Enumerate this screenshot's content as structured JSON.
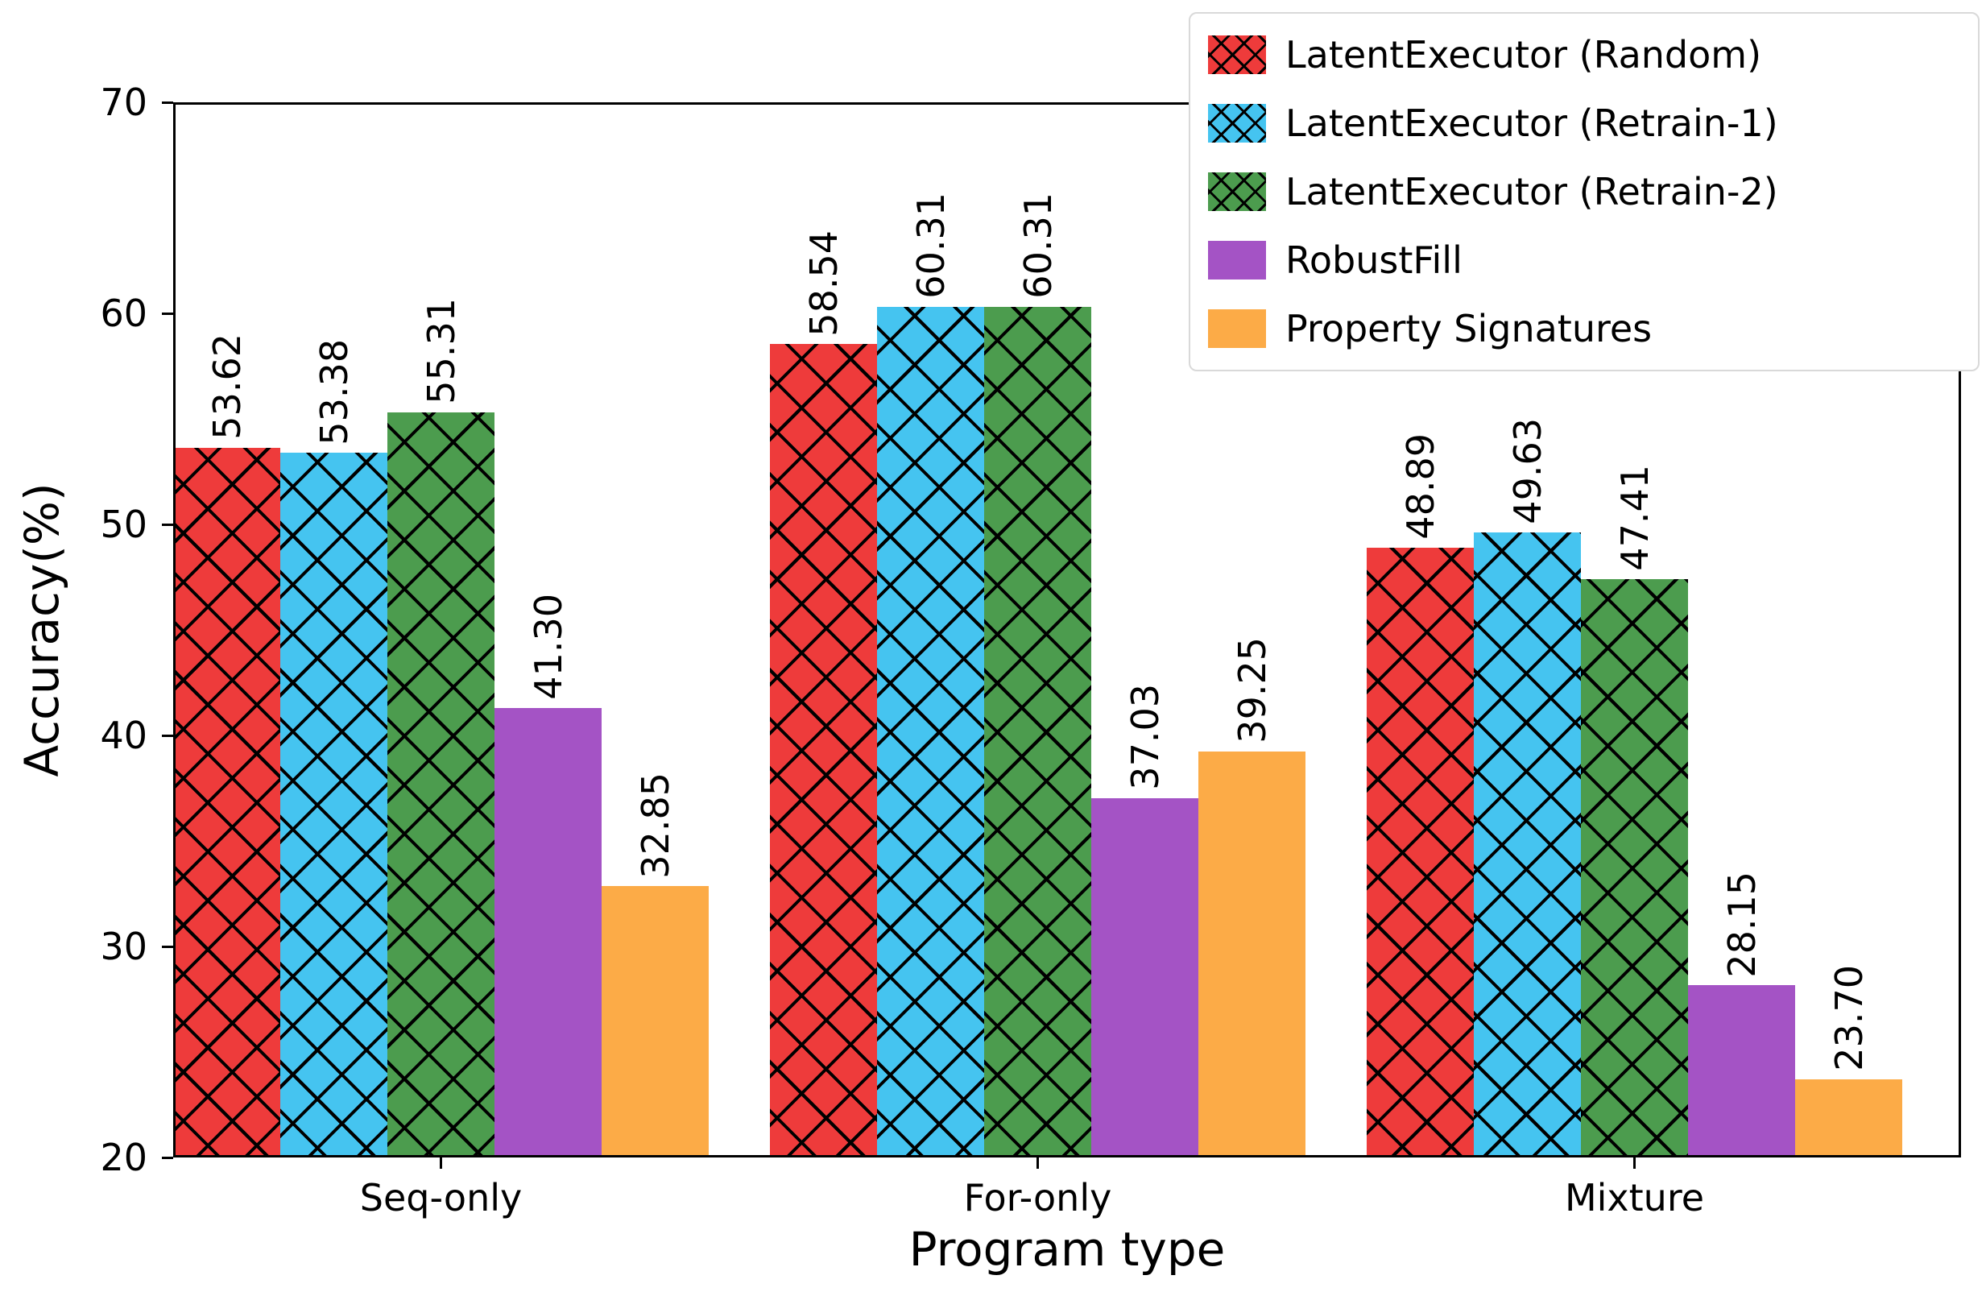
{
  "chart_data": {
    "type": "bar",
    "title": "",
    "xlabel": "Program type",
    "ylabel": "Accuracy(%)",
    "ylim": [
      20,
      70
    ],
    "yticks": [
      20,
      30,
      40,
      50,
      60,
      70
    ],
    "categories": [
      "Seq-only",
      "For-only",
      "Mixture"
    ],
    "series": [
      {
        "name": "LatentExecutor (Random)",
        "color": "#ee3b3b",
        "hatch": "x",
        "values": [
          53.62,
          58.54,
          48.89
        ]
      },
      {
        "name": "LatentExecutor (Retrain-1)",
        "color": "#45c4f0",
        "hatch": "x",
        "values": [
          53.38,
          60.31,
          49.63
        ]
      },
      {
        "name": "LatentExecutor (Retrain-2)",
        "color": "#4c9c4e",
        "hatch": "x",
        "values": [
          55.31,
          60.31,
          47.41
        ]
      },
      {
        "name": "RobustFill",
        "color": "#a453c5",
        "hatch": null,
        "values": [
          41.3,
          37.03,
          28.15
        ]
      },
      {
        "name": "Property Signatures",
        "color": "#fcab47",
        "hatch": null,
        "values": [
          32.85,
          39.25,
          23.7
        ]
      }
    ],
    "bar_label_decimals": 2,
    "legend_position": "upper right",
    "grid": false,
    "colors": {
      "spine": "#000000",
      "text": "#000000",
      "legend_border": "#d9d9d9",
      "background": "#ffffff"
    }
  }
}
